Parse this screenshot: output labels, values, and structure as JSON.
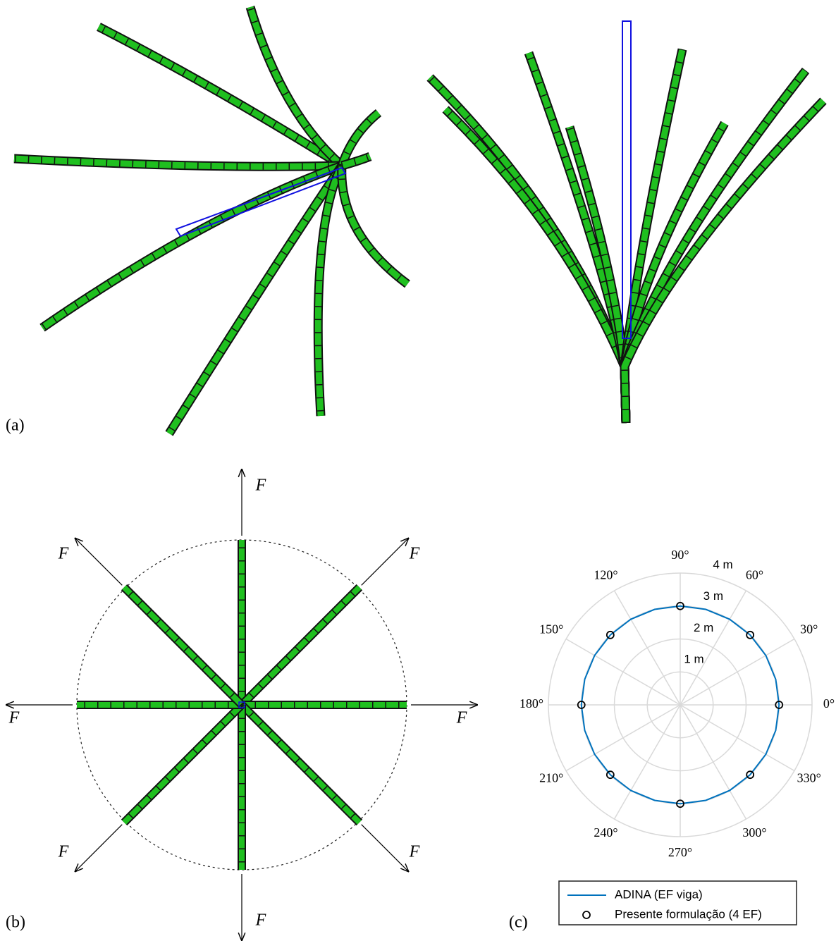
{
  "panel_labels": [
    "(a)",
    "(b)",
    "(c)"
  ],
  "forces": [
    "F",
    "F",
    "F",
    "F",
    "F",
    "F",
    "F",
    "F"
  ],
  "chart_data": {
    "type": "polar",
    "thetaticks": [
      {
        "value": 0,
        "label": "0°"
      },
      {
        "value": 30,
        "label": "30°"
      },
      {
        "value": 60,
        "label": "60°"
      },
      {
        "value": 90,
        "label": "90°"
      },
      {
        "value": 120,
        "label": "120°"
      },
      {
        "value": 150,
        "label": "150°"
      },
      {
        "value": 180,
        "label": "180°"
      },
      {
        "value": 210,
        "label": "210°"
      },
      {
        "value": 240,
        "label": "240°"
      },
      {
        "value": 270,
        "label": "270°"
      },
      {
        "value": 300,
        "label": "300°"
      },
      {
        "value": 330,
        "label": "330°"
      }
    ],
    "rlim": [
      0,
      4
    ],
    "rticks": [
      {
        "value": 1,
        "label": "1 m"
      },
      {
        "value": 2,
        "label": "2 m"
      },
      {
        "value": 3,
        "label": "3 m"
      },
      {
        "value": 4,
        "label": "4 m"
      }
    ],
    "grid": true,
    "series": [
      {
        "name": "ADINA (EF viga)",
        "color": "#0072bd",
        "kind": "line",
        "theta": [
          0,
          15,
          30,
          45,
          60,
          75,
          90,
          105,
          120,
          135,
          150,
          165,
          180,
          195,
          210,
          225,
          240,
          255,
          270,
          285,
          300,
          315,
          330,
          345,
          360
        ],
        "values": [
          3,
          3,
          3,
          3,
          3,
          3,
          3,
          3,
          3,
          3,
          3,
          3,
          3,
          3,
          3,
          3,
          3,
          3,
          3,
          3,
          3,
          3,
          3,
          3,
          3
        ]
      },
      {
        "name": "Presente formulação (4 EF)",
        "color": "#000000",
        "kind": "marker",
        "theta": [
          0,
          45,
          90,
          135,
          180,
          225,
          270,
          315
        ],
        "values": [
          3,
          3,
          3,
          3,
          3,
          3,
          3,
          3
        ]
      }
    ]
  }
}
